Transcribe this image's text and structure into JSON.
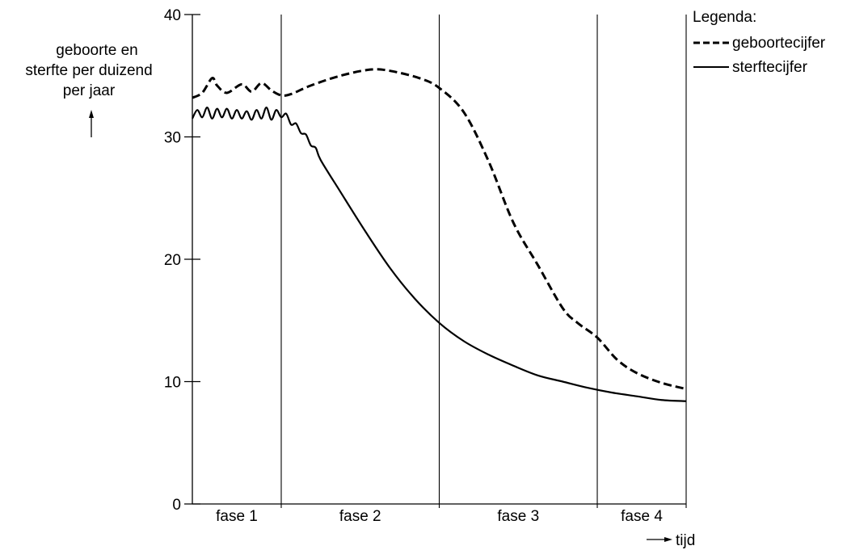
{
  "chart_data": {
    "type": "line",
    "ylabel_lines": [
      "geboorte en",
      "sterfte per duizend",
      "per jaar"
    ],
    "xlabel": "tijd",
    "ylim": [
      0,
      40
    ],
    "yticks": [
      0,
      10,
      20,
      30,
      40
    ],
    "phases": [
      "fase 1",
      "fase 2",
      "fase 3",
      "fase 4"
    ],
    "phase_boundaries": [
      0,
      0.18,
      0.5,
      0.82,
      1.0
    ],
    "x_range": [
      0,
      1
    ],
    "grid": false,
    "legend": {
      "title": "Legenda:",
      "placement": "top-right",
      "entries": [
        {
          "label": "geboortecijfer",
          "style": "dashed"
        },
        {
          "label": "sterftecijfer",
          "style": "solid"
        }
      ]
    },
    "series": [
      {
        "name": "geboortecijfer",
        "style": "dashed",
        "x": [
          0.0,
          0.02,
          0.04,
          0.05,
          0.07,
          0.1,
          0.12,
          0.14,
          0.16,
          0.18,
          0.2,
          0.24,
          0.3,
          0.36,
          0.4,
          0.46,
          0.5,
          0.55,
          0.6,
          0.65,
          0.7,
          0.75,
          0.78,
          0.82,
          0.86,
          0.9,
          0.95,
          1.0
        ],
        "y": [
          33.2,
          33.6,
          34.8,
          34.2,
          33.6,
          34.3,
          33.7,
          34.4,
          33.8,
          33.4,
          33.5,
          34.2,
          35.0,
          35.5,
          35.4,
          34.8,
          34.0,
          32.0,
          28.0,
          23.0,
          19.5,
          16.0,
          14.8,
          13.6,
          11.8,
          10.7,
          9.9,
          9.4
        ]
      },
      {
        "name": "sterftecijfer",
        "style": "solid",
        "x": [
          0.0,
          0.01,
          0.02,
          0.03,
          0.04,
          0.05,
          0.06,
          0.07,
          0.08,
          0.09,
          0.1,
          0.11,
          0.12,
          0.13,
          0.14,
          0.15,
          0.16,
          0.17,
          0.18,
          0.19,
          0.2,
          0.21,
          0.22,
          0.23,
          0.24,
          0.25,
          0.26,
          0.3,
          0.35,
          0.4,
          0.45,
          0.5,
          0.55,
          0.6,
          0.65,
          0.7,
          0.75,
          0.8,
          0.85,
          0.9,
          0.95,
          1.0
        ],
        "y": [
          31.5,
          32.2,
          31.6,
          32.4,
          31.5,
          32.3,
          31.6,
          32.3,
          31.5,
          32.2,
          31.5,
          32.1,
          31.4,
          32.2,
          31.5,
          32.4,
          31.4,
          32.2,
          31.6,
          31.9,
          31.0,
          31.1,
          30.3,
          30.2,
          29.3,
          29.1,
          28.1,
          25.5,
          22.3,
          19.3,
          16.8,
          14.8,
          13.3,
          12.2,
          11.3,
          10.5,
          10.0,
          9.5,
          9.1,
          8.8,
          8.5,
          8.4
        ]
      }
    ]
  }
}
